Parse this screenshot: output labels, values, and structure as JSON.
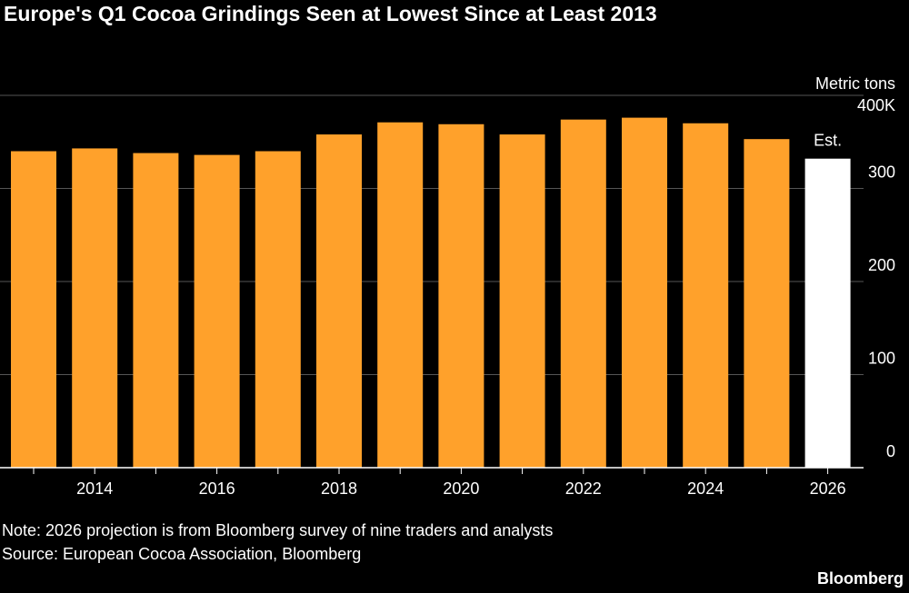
{
  "chart_data": {
    "type": "bar",
    "title": "Europe's Q1 Cocoa Grindings Seen at Lowest Since at Least 2013",
    "y_axis_label": "Metric tons",
    "categories": [
      null,
      "2014",
      null,
      "2016",
      null,
      "2018",
      null,
      "2020",
      null,
      "2022",
      null,
      "2024",
      null,
      "2026"
    ],
    "values": [
      340,
      343,
      338,
      336,
      340,
      358,
      371,
      369,
      358,
      374,
      376,
      370,
      353,
      332
    ],
    "colors": [
      "#ffa12b",
      "#ffa12b",
      "#ffa12b",
      "#ffa12b",
      "#ffa12b",
      "#ffa12b",
      "#ffa12b",
      "#ffa12b",
      "#ffa12b",
      "#ffa12b",
      "#ffa12b",
      "#ffa12b",
      "#ffa12b",
      "#ffffff"
    ],
    "annotation": "Est.",
    "ylim": [
      0,
      400
    ],
    "yticks": [
      0,
      100,
      200,
      300,
      {
        "value": 400,
        "label": "400K"
      }
    ],
    "grid": true,
    "note": "Note: 2026 projection is from Bloomberg survey of nine traders and analysts",
    "source": "Source: European Cocoa Association, Bloomberg",
    "brand": "Bloomberg"
  }
}
